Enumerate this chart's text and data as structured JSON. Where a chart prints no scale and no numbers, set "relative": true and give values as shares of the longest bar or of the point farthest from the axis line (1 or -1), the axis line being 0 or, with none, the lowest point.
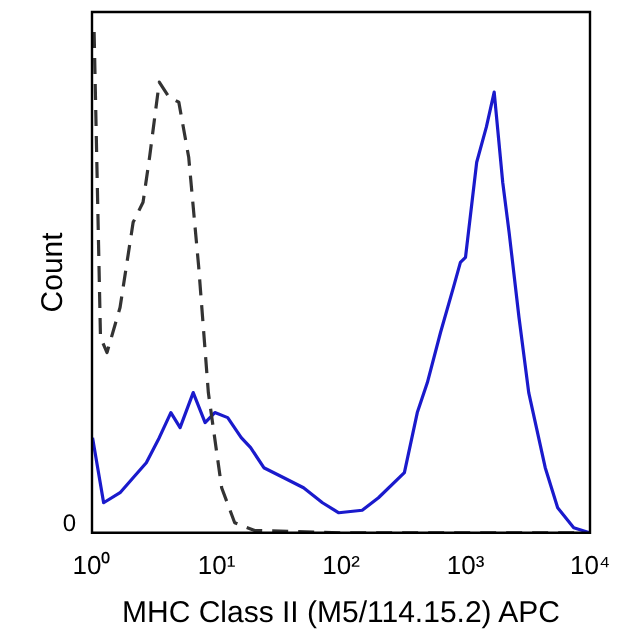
{
  "chart_data": {
    "type": "line",
    "xlabel": "MHC Class II (M5/114.15.2) APC",
    "ylabel": "Count",
    "relative": true,
    "log": "x",
    "xlim": [
      1,
      10000
    ],
    "xticks": [
      {
        "value": 1,
        "label": "10⁰"
      },
      {
        "value": 10,
        "label": "10¹"
      },
      {
        "value": 100,
        "label": "10²"
      },
      {
        "value": 1000,
        "label": "10³"
      },
      {
        "value": 10000,
        "label": "10⁴"
      }
    ],
    "annotations": [
      "0"
    ],
    "grid": false,
    "legend": false,
    "marker": "none",
    "series": [
      {
        "color": "#333333",
        "line_style": "dashed",
        "x": [
          1.04,
          1.17,
          1.32,
          1.68,
          2.14,
          2.57,
          2.9,
          3.47,
          4.16,
          4.98,
          5.98,
          7.2,
          8.6,
          11,
          14,
          20,
          100,
          1000,
          9000
        ],
        "values": [
          1.0,
          0.39,
          0.36,
          0.45,
          0.62,
          0.66,
          0.75,
          0.9,
          0.87,
          0.86,
          0.75,
          0.53,
          0.28,
          0.09,
          0.02,
          0.005,
          0,
          0,
          0
        ]
      },
      {
        "color": "#1a1acc",
        "line_style": "solid",
        "x": [
          1.01,
          1.24,
          1.68,
          2.14,
          2.73,
          3.47,
          4.3,
          5.1,
          6.5,
          8.1,
          9.7,
          12.3,
          15.8,
          18.8,
          24,
          34.7,
          50,
          71,
          96,
          148,
          200,
          323,
          410,
          494,
          630,
          800,
          910,
          1000,
          1230,
          1470,
          1700,
          1990,
          2240,
          2690,
          3220,
          4370,
          5500,
          7400,
          10000
        ],
        "values": [
          0.19,
          0.06,
          0.08,
          0.11,
          0.14,
          0.19,
          0.24,
          0.21,
          0.28,
          0.22,
          0.24,
          0.23,
          0.19,
          0.17,
          0.13,
          0.11,
          0.09,
          0.06,
          0.04,
          0.045,
          0.07,
          0.12,
          0.24,
          0.3,
          0.4,
          0.49,
          0.54,
          0.55,
          0.74,
          0.81,
          0.88,
          0.7,
          0.6,
          0.43,
          0.28,
          0.13,
          0.05,
          0.01,
          0
        ]
      }
    ]
  }
}
